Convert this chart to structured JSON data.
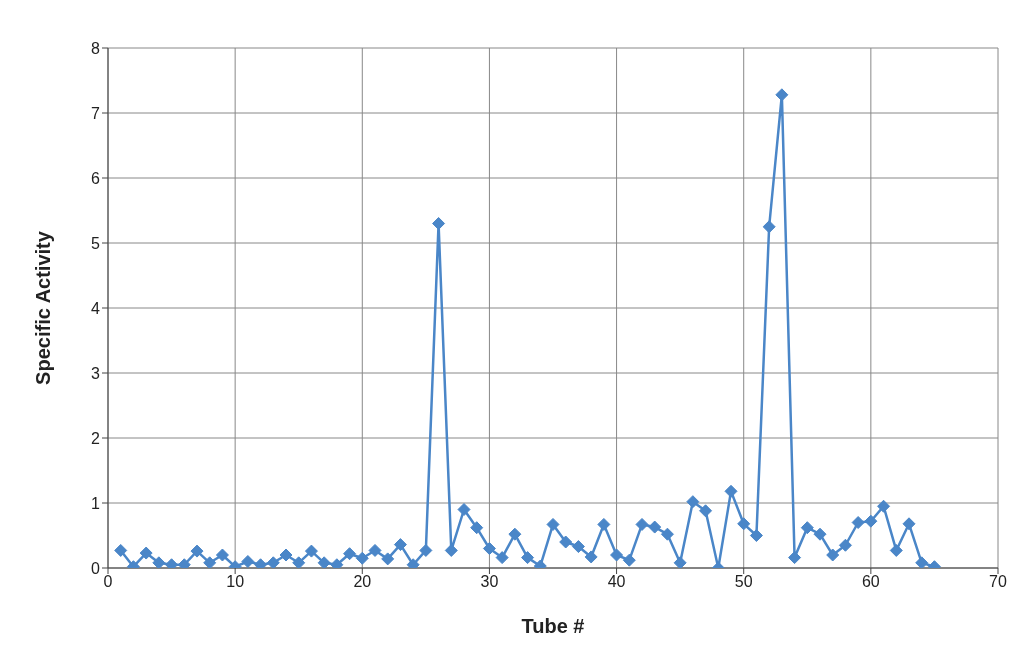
{
  "chart_data": {
    "type": "line",
    "xlabel": "Tube #",
    "ylabel": "Specific Activity",
    "x": [
      1,
      2,
      3,
      4,
      5,
      6,
      7,
      8,
      9,
      10,
      11,
      12,
      13,
      14,
      15,
      16,
      17,
      18,
      19,
      20,
      21,
      22,
      23,
      24,
      25,
      26,
      27,
      28,
      29,
      30,
      31,
      32,
      33,
      34,
      35,
      36,
      37,
      38,
      39,
      40,
      41,
      42,
      43,
      44,
      45,
      46,
      47,
      48,
      49,
      50,
      51,
      52,
      53,
      54,
      55,
      56,
      57,
      58,
      59,
      60,
      61,
      62,
      63,
      64,
      65
    ],
    "series": [
      {
        "color": "#4a86c8",
        "values": [
          0.27,
          0.02,
          0.23,
          0.08,
          0.05,
          0.05,
          0.26,
          0.08,
          0.2,
          0.02,
          0.1,
          0.05,
          0.08,
          0.2,
          0.08,
          0.26,
          0.08,
          0.05,
          0.22,
          0.15,
          0.27,
          0.14,
          0.36,
          0.05,
          0.27,
          5.3,
          0.27,
          0.9,
          0.62,
          0.3,
          0.16,
          0.52,
          0.16,
          0.03,
          0.67,
          0.4,
          0.33,
          0.17,
          0.67,
          0.2,
          0.12,
          0.67,
          0.63,
          0.52,
          0.08,
          1.02,
          0.88,
          0.0,
          1.18,
          0.68,
          0.5,
          5.25,
          7.28,
          0.16,
          0.62,
          0.52,
          0.2,
          0.35,
          0.7,
          0.72,
          0.95,
          0.27,
          0.68,
          0.08,
          0.02
        ]
      }
    ],
    "xlim": [
      0,
      70
    ],
    "xticks": [
      0,
      10,
      20,
      30,
      40,
      50,
      60,
      70
    ],
    "ylim": [
      0,
      8
    ],
    "yticks": [
      0,
      1,
      2,
      3,
      4,
      5,
      6,
      7,
      8
    ],
    "grid": true,
    "marker": "diamond",
    "line_style": "solid"
  }
}
